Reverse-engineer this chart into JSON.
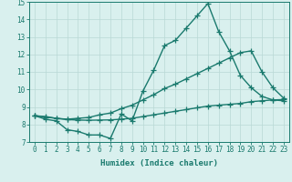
{
  "x": [
    0,
    1,
    2,
    3,
    4,
    5,
    6,
    7,
    8,
    9,
    10,
    11,
    12,
    13,
    14,
    15,
    16,
    17,
    18,
    19,
    20,
    21,
    22,
    23
  ],
  "line1": [
    8.5,
    8.3,
    8.2,
    7.7,
    7.6,
    7.4,
    7.4,
    7.2,
    8.6,
    8.2,
    9.9,
    11.1,
    12.5,
    12.8,
    13.5,
    14.2,
    14.9,
    13.3,
    12.2,
    10.8,
    10.1,
    9.6,
    9.4,
    9.35
  ],
  "line2": [
    8.5,
    8.45,
    8.35,
    8.3,
    8.35,
    8.4,
    8.55,
    8.65,
    8.9,
    9.1,
    9.4,
    9.7,
    10.05,
    10.3,
    10.6,
    10.9,
    11.2,
    11.5,
    11.8,
    12.1,
    12.2,
    11.0,
    10.1,
    9.5
  ],
  "line3": [
    8.5,
    8.42,
    8.35,
    8.28,
    8.25,
    8.24,
    8.25,
    8.26,
    8.3,
    8.35,
    8.45,
    8.55,
    8.65,
    8.75,
    8.85,
    8.95,
    9.05,
    9.1,
    9.15,
    9.2,
    9.3,
    9.35,
    9.4,
    9.42
  ],
  "color": "#1a7a6e",
  "bg_color": "#d9f0ee",
  "grid_color": "#b8d8d5",
  "xlabel": "Humidex (Indice chaleur)",
  "ylim": [
    7,
    15
  ],
  "xlim": [
    -0.5,
    23.5
  ],
  "yticks": [
    7,
    8,
    9,
    10,
    11,
    12,
    13,
    14,
    15
  ],
  "xticks": [
    0,
    1,
    2,
    3,
    4,
    5,
    6,
    7,
    8,
    9,
    10,
    11,
    12,
    13,
    14,
    15,
    16,
    17,
    18,
    19,
    20,
    21,
    22,
    23
  ],
  "xtick_labels": [
    "0",
    "1",
    "2",
    "3",
    "4",
    "5",
    "6",
    "7",
    "8",
    "9",
    "10",
    "11",
    "12",
    "13",
    "14",
    "15",
    "16",
    "17",
    "18",
    "19",
    "20",
    "21",
    "22",
    "23"
  ],
  "marker": "+",
  "markersize": 4,
  "linewidth": 1.0,
  "tick_fontsize": 5.5,
  "xlabel_fontsize": 6.5
}
